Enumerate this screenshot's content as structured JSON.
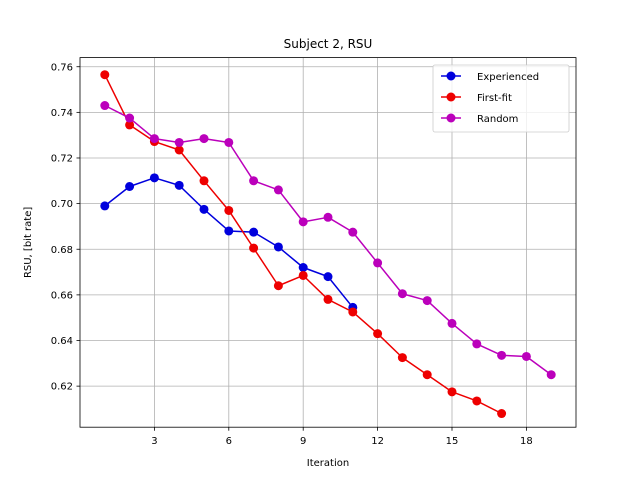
{
  "chart_data": {
    "type": "line",
    "title": "Subject 2, RSU",
    "xlabel": "Iteration",
    "ylabel": "RSU, [bit rate]",
    "xlim": [
      -0.0,
      20.0
    ],
    "ylim": [
      0.602,
      0.764
    ],
    "xticks": [
      3,
      6,
      9,
      12,
      15,
      18
    ],
    "yticks": [
      0.62,
      0.64,
      0.66,
      0.68,
      0.7,
      0.72,
      0.74,
      0.76
    ],
    "ytick_labels": [
      "0.62",
      "0.64",
      "0.66",
      "0.68",
      "0.70",
      "0.72",
      "0.74",
      "0.76"
    ],
    "grid": true,
    "legend_position": "top-right",
    "series": [
      {
        "name": "Experienced",
        "color": "#0000dd",
        "x": [
          1,
          2,
          3,
          4,
          5,
          6,
          7,
          8,
          9,
          10,
          11
        ],
        "values": [
          0.699,
          0.7075,
          0.7113,
          0.708,
          0.6975,
          0.688,
          0.6875,
          0.681,
          0.672,
          0.668,
          0.6545
        ]
      },
      {
        "name": "First-fit",
        "color": "#ee0000",
        "x": [
          1,
          2,
          3,
          4,
          5,
          6,
          7,
          8,
          9,
          10,
          11,
          12,
          13,
          14,
          15,
          16,
          17
        ],
        "values": [
          0.7565,
          0.7345,
          0.7272,
          0.7235,
          0.71,
          0.697,
          0.6805,
          0.664,
          0.6685,
          0.658,
          0.6525,
          0.643,
          0.6325,
          0.625,
          0.6175,
          0.6135,
          0.608
        ]
      },
      {
        "name": "Random",
        "color": "#bb00bb",
        "x": [
          1,
          2,
          3,
          4,
          5,
          6,
          7,
          8,
          9,
          10,
          11,
          12,
          13,
          14,
          15,
          16,
          17,
          18,
          19
        ],
        "values": [
          0.743,
          0.7375,
          0.7285,
          0.7268,
          0.7285,
          0.7268,
          0.71,
          0.706,
          0.692,
          0.694,
          0.6875,
          0.674,
          0.6605,
          0.6575,
          0.6475,
          0.6385,
          0.6335,
          0.633,
          0.625
        ]
      }
    ]
  }
}
